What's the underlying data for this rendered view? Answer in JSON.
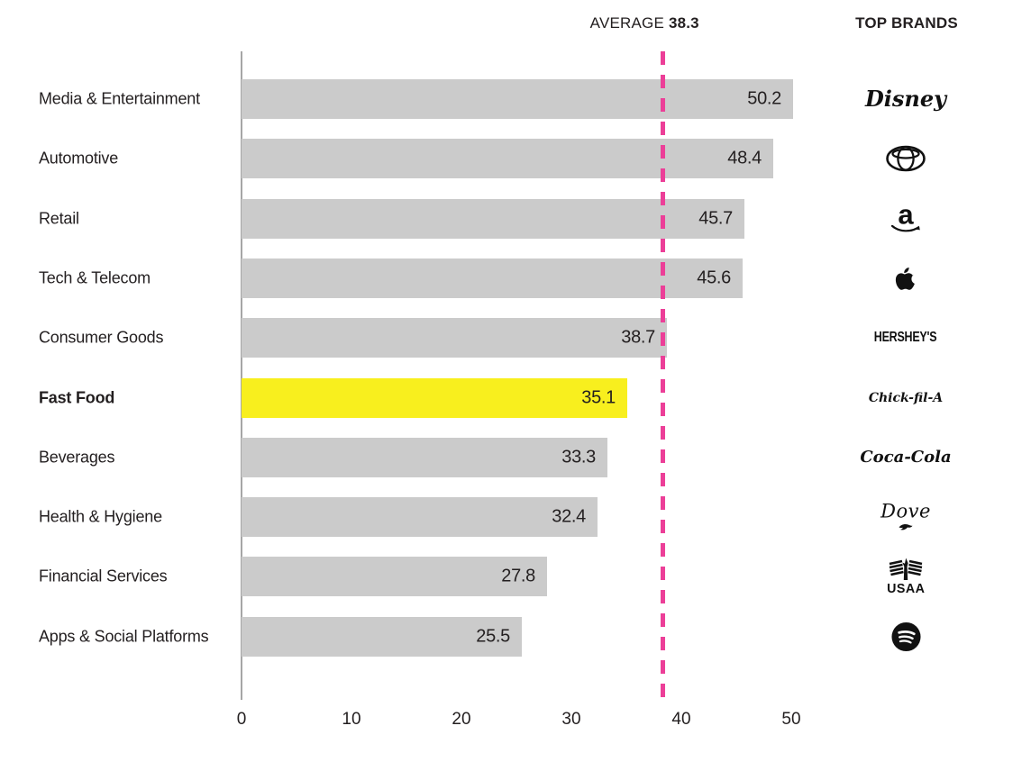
{
  "header": {
    "average_label": "AVERAGE",
    "average_value": "38.3",
    "top_brands_label": "TOP BRANDS"
  },
  "chart_data": {
    "type": "bar",
    "orientation": "horizontal",
    "categories": [
      "Media & Entertainment",
      "Automotive",
      "Retail",
      "Tech & Telecom",
      "Consumer Goods",
      "Fast Food",
      "Beverages",
      "Health & Hygiene",
      "Financial Services",
      "Apps & Social Platforms"
    ],
    "values": [
      50.2,
      48.4,
      45.7,
      45.6,
      38.7,
      35.1,
      33.3,
      32.4,
      27.8,
      25.5
    ],
    "highlight_category": "Fast Food",
    "highlight_index": 5,
    "average": 38.3,
    "x_ticks": [
      0,
      10,
      20,
      30,
      40,
      50
    ],
    "xlim": [
      0,
      52
    ],
    "grid": false,
    "legend": false,
    "top_brands": [
      "Disney",
      "Toyota",
      "Amazon",
      "Apple",
      "Hershey's",
      "Chick-fil-A",
      "Coca-Cola",
      "Dove",
      "USAA",
      "Spotify"
    ],
    "amazon_mark": "a",
    "colors": {
      "bar": "#cbcbcb",
      "highlight": "#f8ef1e",
      "average_line": "#ec3f98",
      "axis": "#a6a6a6",
      "text": "#231f20"
    }
  }
}
